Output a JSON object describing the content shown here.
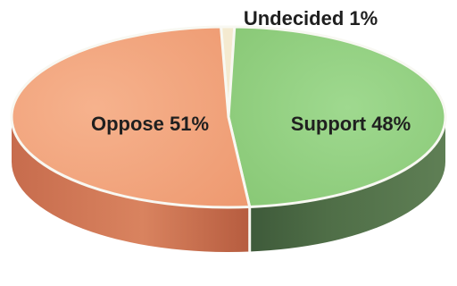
{
  "chart_data": {
    "type": "pie",
    "style": "3d",
    "slices": [
      {
        "label": "Undecided 1%",
        "value": 1,
        "color": "#f3e8c8"
      },
      {
        "label": "Support 48%",
        "value": 48,
        "color": "#8fcf7e"
      },
      {
        "label": "Oppose 51%",
        "value": 51,
        "color": "#f2a47b"
      }
    ]
  }
}
